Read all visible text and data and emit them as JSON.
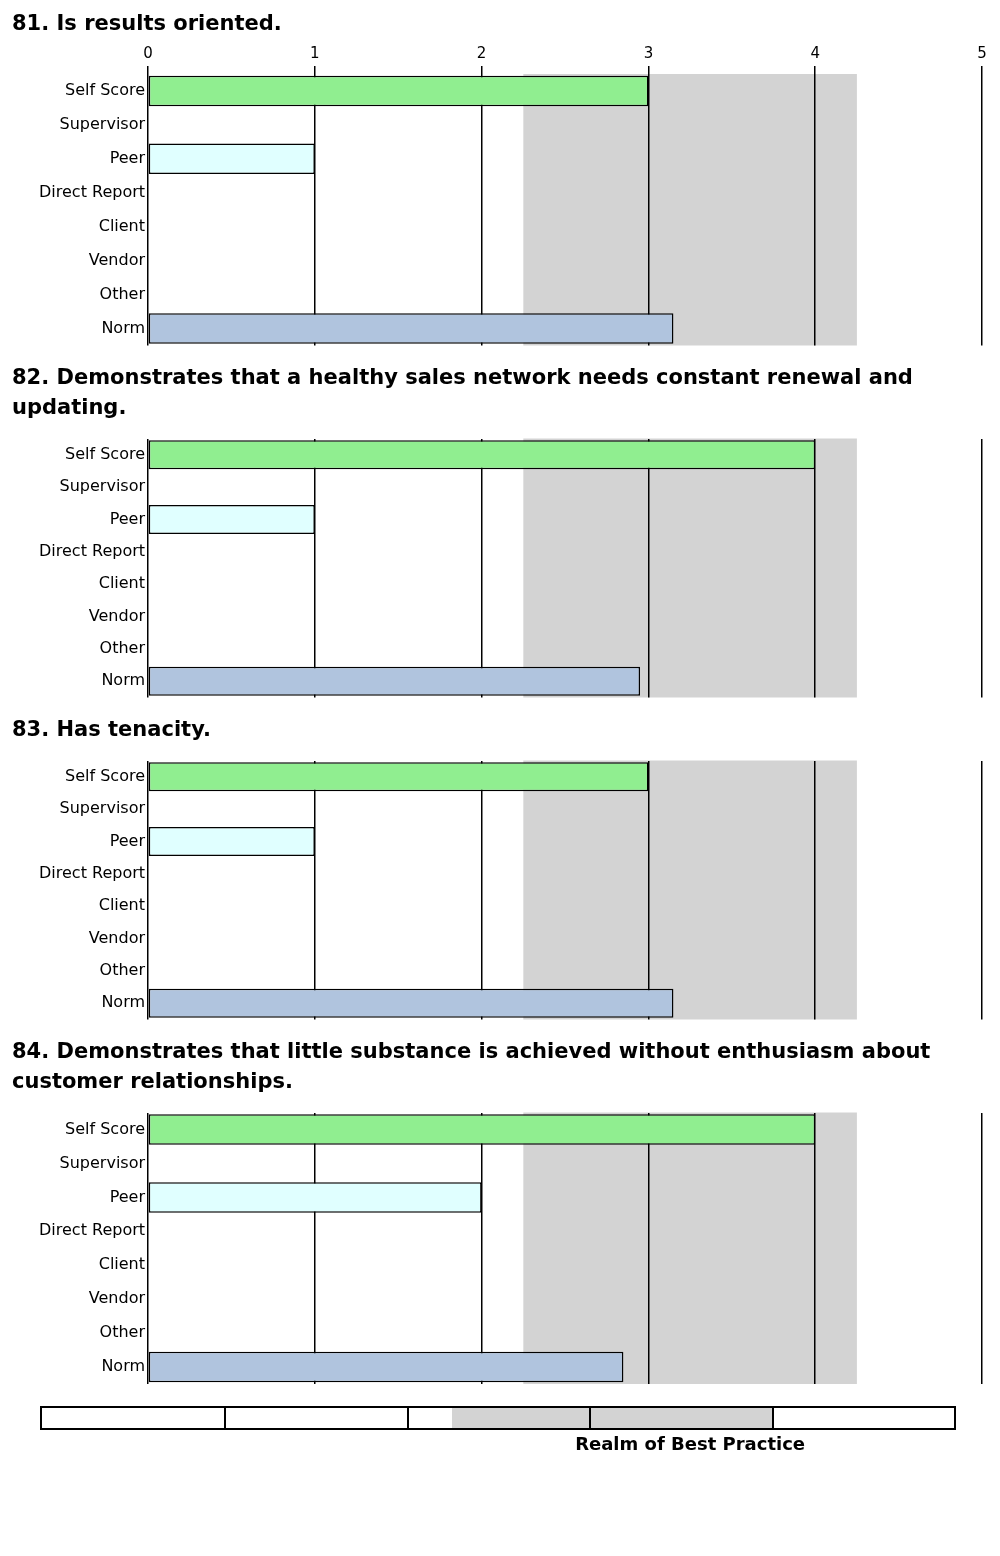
{
  "chart_data": [
    {
      "type": "bar",
      "orientation": "horizontal",
      "title": "81.  Is results oriented.",
      "categories": [
        "Self Score",
        "Supervisor",
        "Peer",
        "Direct Report",
        "Client",
        "Vendor",
        "Other",
        "Norm"
      ],
      "values": [
        3,
        null,
        1,
        null,
        null,
        null,
        null,
        3.15
      ],
      "colors": [
        "#90ee90",
        "#90ee90",
        "#e0ffff",
        "#e0ffff",
        "#e0ffff",
        "#e0ffff",
        "#e0ffff",
        "#b0c4de"
      ],
      "xlim": [
        0,
        5
      ],
      "xticks": [
        0,
        1,
        2,
        3,
        4,
        5
      ],
      "grid": "x",
      "bands": [
        {
          "axis": "x",
          "from": 2.25,
          "to": 4.25,
          "color": "#d3d3d3"
        }
      ]
    },
    {
      "type": "bar",
      "orientation": "horizontal",
      "title": "82.  Demonstrates that a healthy sales network needs constant renewal and updating.",
      "categories": [
        "Self Score",
        "Supervisor",
        "Peer",
        "Direct Report",
        "Client",
        "Vendor",
        "Other",
        "Norm"
      ],
      "values": [
        4,
        null,
        1,
        null,
        null,
        null,
        null,
        2.95
      ],
      "colors": [
        "#90ee90",
        "#90ee90",
        "#e0ffff",
        "#e0ffff",
        "#e0ffff",
        "#e0ffff",
        "#e0ffff",
        "#b0c4de"
      ],
      "xlim": [
        0,
        5
      ],
      "xticks": [
        0,
        1,
        2,
        3,
        4,
        5
      ],
      "grid": "x",
      "tick_labels": "y",
      "bands": [
        {
          "axis": "x",
          "from": 2.25,
          "to": 4.25,
          "color": "#d3d3d3"
        }
      ]
    },
    {
      "type": "bar",
      "orientation": "horizontal",
      "title": "83.  Has tenacity.",
      "categories": [
        "Self Score",
        "Supervisor",
        "Peer",
        "Direct Report",
        "Client",
        "Vendor",
        "Other",
        "Norm"
      ],
      "values": [
        3,
        null,
        1,
        null,
        null,
        null,
        null,
        3.15
      ],
      "colors": [
        "#90ee90",
        "#90ee90",
        "#e0ffff",
        "#e0ffff",
        "#e0ffff",
        "#e0ffff",
        "#e0ffff",
        "#b0c4de"
      ],
      "xlim": [
        0,
        5
      ],
      "xticks": [
        0,
        1,
        2,
        3,
        4,
        5
      ],
      "grid": "x",
      "tick_labels": "y",
      "bands": [
        {
          "axis": "x",
          "from": 2.25,
          "to": 4.25,
          "color": "#d3d3d3"
        }
      ]
    },
    {
      "type": "bar",
      "orientation": "horizontal",
      "title": "84.  Demonstrates that little substance is achieved without enthusiasm about customer relationships.",
      "categories": [
        "Self Score",
        "Supervisor",
        "Peer",
        "Direct Report",
        "Client",
        "Vendor",
        "Other",
        "Norm"
      ],
      "values": [
        4,
        null,
        2,
        null,
        null,
        null,
        null,
        2.85
      ],
      "colors": [
        "#90ee90",
        "#90ee90",
        "#e0ffff",
        "#e0ffff",
        "#e0ffff",
        "#e0ffff",
        "#e0ffff",
        "#b0c4de"
      ],
      "xlim": [
        0,
        5
      ],
      "xticks": [
        0,
        1,
        2,
        3,
        4,
        5
      ],
      "grid": "x",
      "tick_labels": "y",
      "bands": [
        {
          "axis": "x",
          "from": 2.25,
          "to": 4.25,
          "color": "#d3d3d3",
          "label": "Realm of Best Practice"
        }
      ]
    }
  ]
}
